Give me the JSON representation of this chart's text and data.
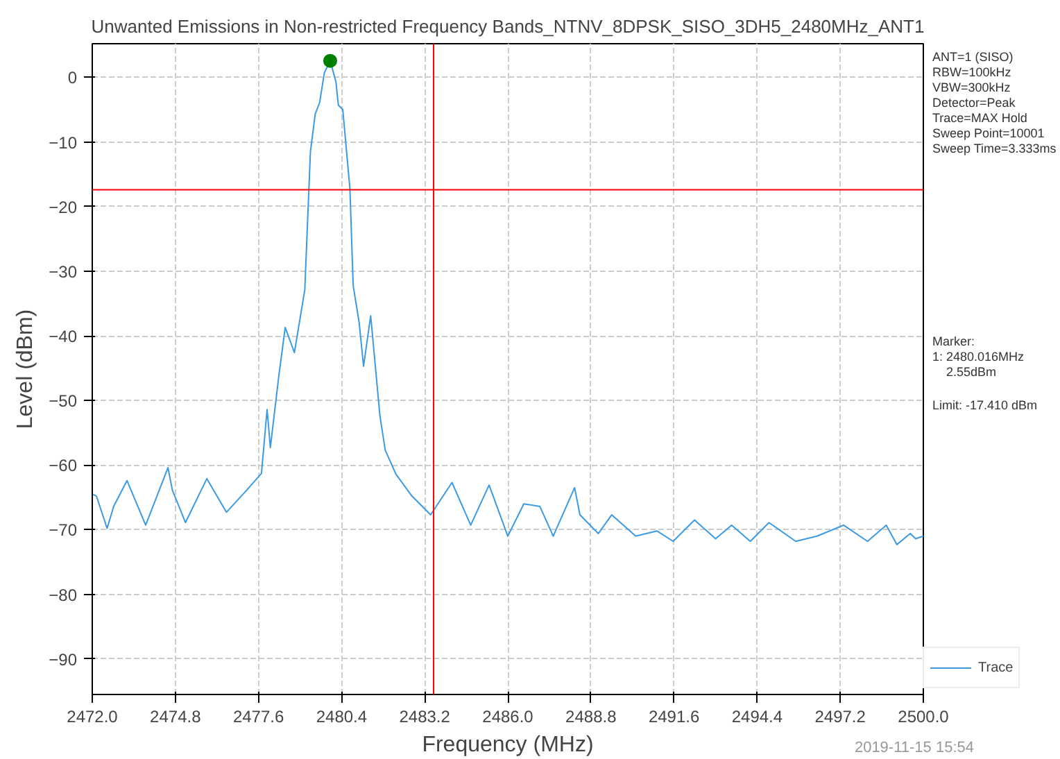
{
  "chart_data": {
    "type": "line",
    "title": "Unwanted Emissions in Non-restricted Frequency Bands_NTNV_8DPSK_SISO_3DH5_2480MHz_ANT1",
    "xlabel": "Frequency (MHz)",
    "ylabel": "Level (dBm)",
    "xlim": [
      2472,
      2500
    ],
    "ylim": [
      -95.5,
      5.2
    ],
    "xticks": [
      {
        "value": 2472,
        "label": "2472.0"
      },
      {
        "value": 2474.8,
        "label": "2474.8"
      },
      {
        "value": 2477.6,
        "label": "2477.6"
      },
      {
        "value": 2480.4,
        "label": "2480.4"
      },
      {
        "value": 2483.2,
        "label": "2483.2"
      },
      {
        "value": 2486,
        "label": "2486.0"
      },
      {
        "value": 2488.8,
        "label": "2488.8"
      },
      {
        "value": 2491.6,
        "label": "2491.6"
      },
      {
        "value": 2494.4,
        "label": "2494.4"
      },
      {
        "value": 2497.2,
        "label": "2497.2"
      },
      {
        "value": 2500,
        "label": "2500.0"
      }
    ],
    "yticks": [
      0,
      -10,
      -20,
      -30,
      -40,
      -50,
      -60,
      -70,
      -80,
      -90
    ],
    "grid": true,
    "legend": "bottom right",
    "line_style": "solid",
    "series": [
      {
        "name": "Trace",
        "color": "#3a9ae6",
        "x": [
          2472,
          2472.14,
          2472.5,
          2472.72,
          2473.17,
          2473.8,
          2474.55,
          2474.7,
          2475.14,
          2475.86,
          2476.52,
          2477.2,
          2477.7,
          2477.89,
          2478.0,
          2478.28,
          2478.5,
          2478.81,
          2479.16,
          2479.35,
          2479.51,
          2479.66,
          2479.82,
          2480.016,
          2480.21,
          2480.29,
          2480.44,
          2480.68,
          2480.79,
          2480.99,
          2481.14,
          2481.38,
          2481.69,
          2481.87,
          2482.23,
          2482.77,
          2483.4,
          2484.12,
          2484.75,
          2485.37,
          2486.0,
          2486.54,
          2487.08,
          2487.53,
          2488.25,
          2488.43,
          2489.05,
          2489.5,
          2490.31,
          2491.03,
          2491.57,
          2492.29,
          2493.0,
          2493.54,
          2494.17,
          2494.8,
          2495.7,
          2496.42,
          2497.31,
          2498.12,
          2498.75,
          2499.11,
          2499.56,
          2499.74,
          2500
        ],
        "values": [
          -64.5,
          -64.8,
          -69.8,
          -66.4,
          -62.4,
          -69.3,
          -60.4,
          -63.9,
          -68.9,
          -62.1,
          -67.3,
          -63.9,
          -61.3,
          -51.4,
          -57.3,
          -46.4,
          -38.7,
          -42.6,
          -32.9,
          -11.5,
          -5.7,
          -3.9,
          0.7,
          2.55,
          -0.7,
          -4.3,
          -5.0,
          -17.2,
          -32.2,
          -37.9,
          -44.7,
          -36.9,
          -52.3,
          -57.7,
          -61.4,
          -64.8,
          -67.7,
          -62.7,
          -69.3,
          -63.1,
          -71.0,
          -66.0,
          -66.4,
          -71.0,
          -63.5,
          -67.7,
          -70.6,
          -67.7,
          -71.0,
          -70.2,
          -71.8,
          -68.5,
          -71.4,
          -69.3,
          -71.8,
          -68.9,
          -71.8,
          -71.0,
          -69.3,
          -71.8,
          -69.3,
          -72.3,
          -70.6,
          -71.4,
          -71.0
        ]
      },
      {
        "type": "scatter",
        "marker": "circle",
        "color": "#008000",
        "x": [
          2480.016
        ],
        "values": [
          2.55
        ]
      }
    ],
    "ref_lines": [
      {
        "axis": "y",
        "value": -17.41,
        "color": "#ff0000"
      },
      {
        "axis": "x",
        "value": 2483.5,
        "color": "#ff0000"
      }
    ],
    "annotations": [
      "ANT=1 (SISO)\nRBW=100kHz\nVBW=300kHz\nDetector=Peak\nTrace=MAX Hold\nSweep Point=10001\nSweep Time=3.333ms",
      "Marker:\n1: 2480.016MHz\n    2.55dBm",
      "Limit: -17.410 dBm",
      "2019-11-15 15:54"
    ]
  }
}
